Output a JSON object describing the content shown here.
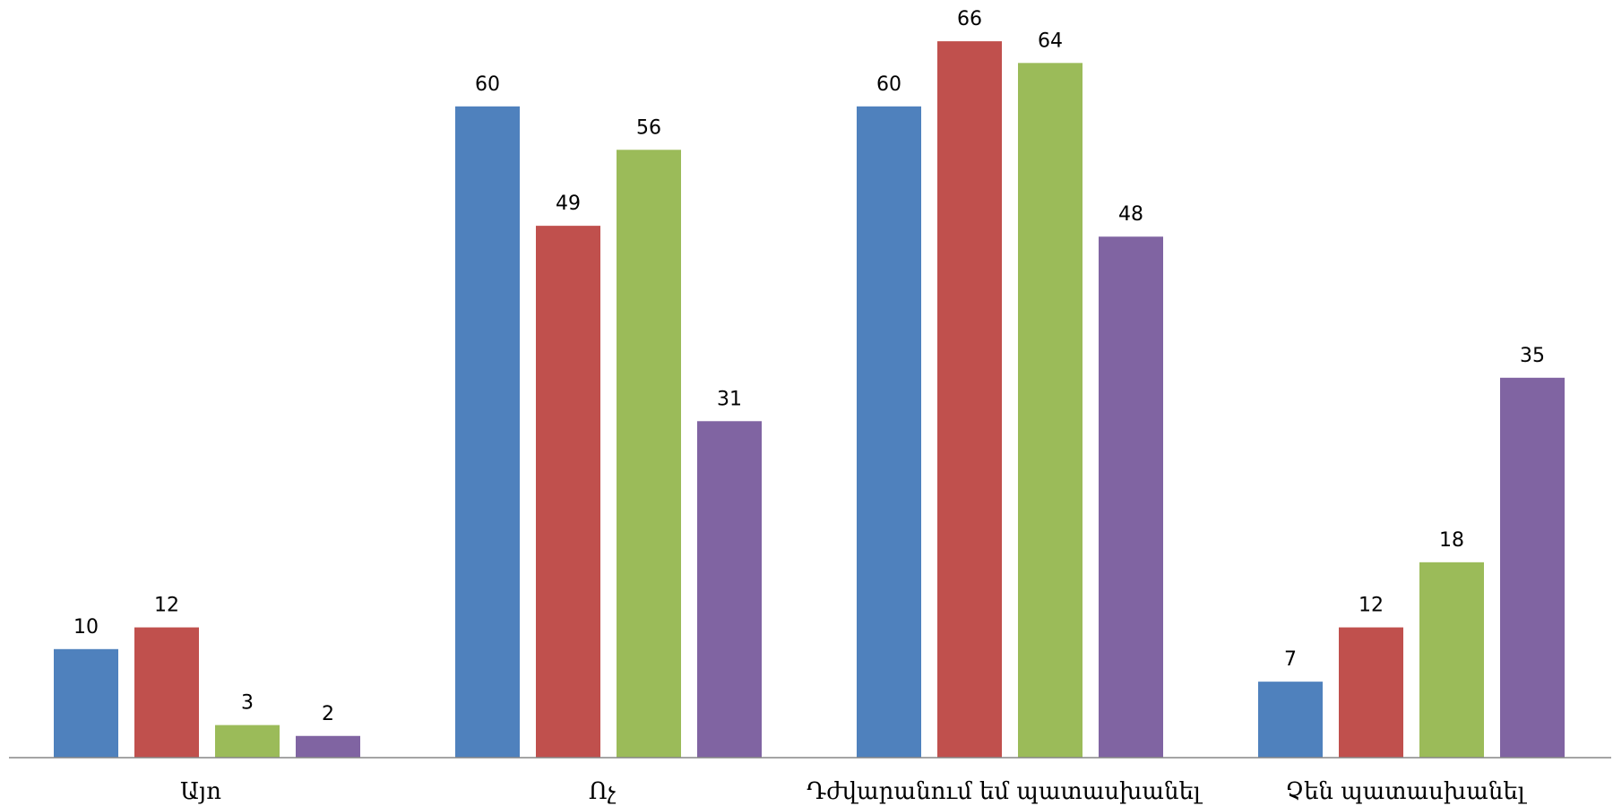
{
  "chart_data": {
    "type": "bar",
    "categories": [
      "Այո",
      "Ոչ",
      "Դժվարանում եմ պատասխանել",
      "Չեն պատասխանել"
    ],
    "series": [
      {
        "color": "#4F81BD",
        "values": [
          10,
          60,
          60,
          7
        ]
      },
      {
        "color": "#C0504D",
        "values": [
          12,
          49,
          66,
          12
        ]
      },
      {
        "color": "#9BBB59",
        "values": [
          3,
          56,
          64,
          18
        ]
      },
      {
        "color": "#8064A2",
        "values": [
          2,
          31,
          48,
          35
        ]
      }
    ],
    "ylim": [
      0,
      70
    ],
    "grid": false,
    "legend": "none",
    "data_labels": true
  }
}
